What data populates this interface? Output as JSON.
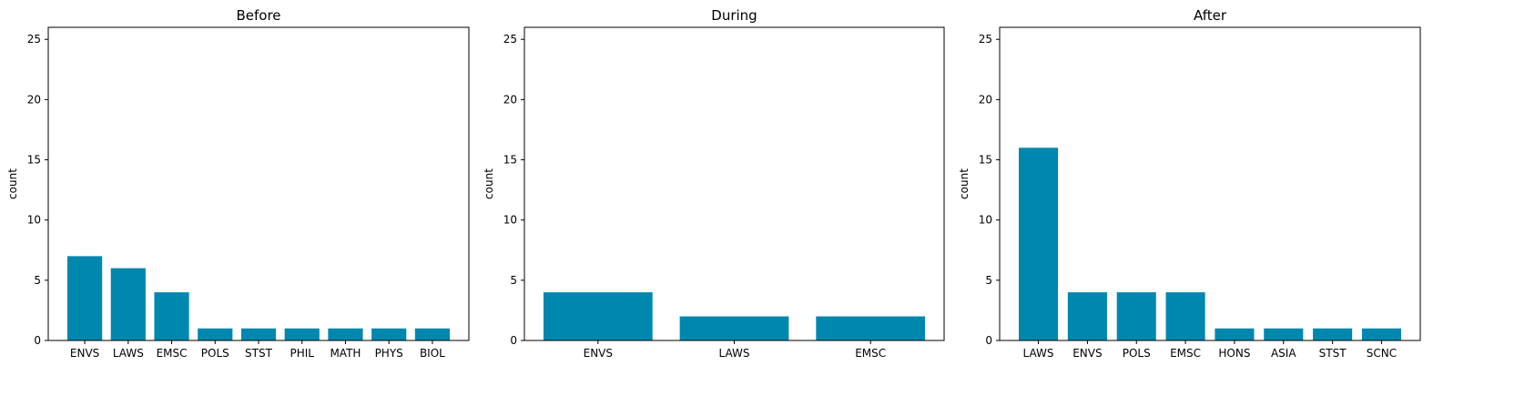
{
  "figure": {
    "bar_color": "#0087ae",
    "background": "#ffffff"
  },
  "chart_data": [
    {
      "type": "bar",
      "title": "Before",
      "ylabel": "count",
      "xlabel": "",
      "ylim": [
        0,
        26
      ],
      "yticks": [
        0,
        5,
        10,
        15,
        20,
        25
      ],
      "categories": [
        "ENVS",
        "LAWS",
        "EMSC",
        "POLS",
        "STST",
        "PHIL",
        "MATH",
        "PHYS",
        "BIOL"
      ],
      "values": [
        7,
        6,
        4,
        1,
        1,
        1,
        1,
        1,
        1
      ]
    },
    {
      "type": "bar",
      "title": "During",
      "ylabel": "count",
      "xlabel": "",
      "ylim": [
        0,
        26
      ],
      "yticks": [
        0,
        5,
        10,
        15,
        20,
        25
      ],
      "categories": [
        "ENVS",
        "LAWS",
        "EMSC"
      ],
      "values": [
        4,
        2,
        2
      ]
    },
    {
      "type": "bar",
      "title": "After",
      "ylabel": "count",
      "xlabel": "",
      "ylim": [
        0,
        26
      ],
      "yticks": [
        0,
        5,
        10,
        15,
        20,
        25
      ],
      "categories": [
        "LAWS",
        "ENVS",
        "POLS",
        "EMSC",
        "HONS",
        "ASIA",
        "STST",
        "SCNC"
      ],
      "values": [
        16,
        4,
        4,
        4,
        1,
        1,
        1,
        1
      ]
    }
  ]
}
